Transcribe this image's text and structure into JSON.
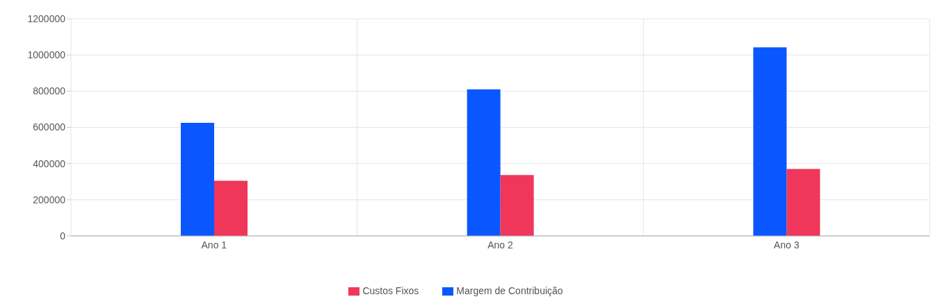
{
  "chart_data": {
    "type": "bar",
    "categories": [
      "Ano 1",
      "Ano 2",
      "Ano 3"
    ],
    "series": [
      {
        "name": "Margem de Contribuição",
        "color": "#0b57ff",
        "values": [
          625000,
          810000,
          1042000
        ]
      },
      {
        "name": "Custos Fixos",
        "color": "#f0365a",
        "values": [
          305000,
          336000,
          370000
        ]
      }
    ],
    "ylim": [
      0,
      1200000
    ],
    "yticks": [
      0,
      200000,
      400000,
      600000,
      800000,
      1000000,
      1200000
    ],
    "grid": true,
    "legend": "bottom"
  }
}
